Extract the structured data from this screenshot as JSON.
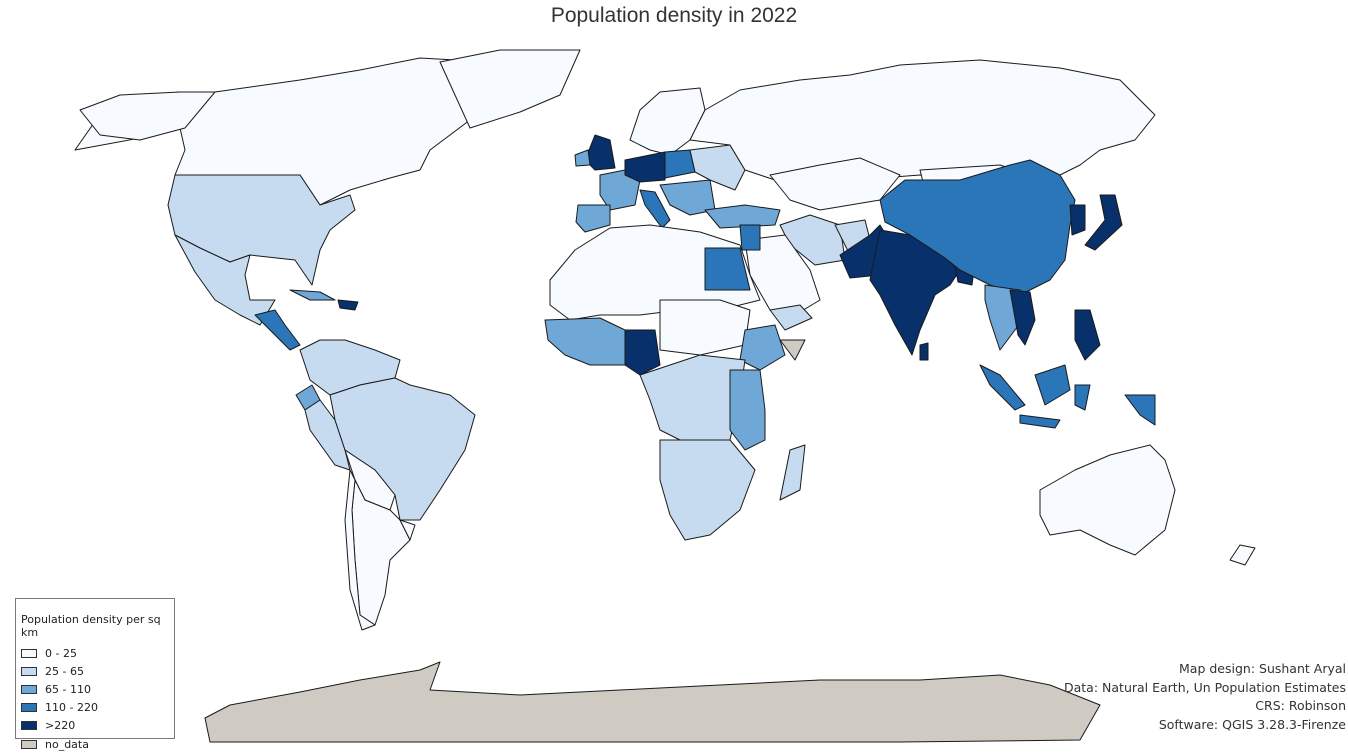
{
  "title": "Population density in 2022",
  "legend": {
    "title": "Population density per sq km",
    "items": [
      {
        "label": "0 - 25",
        "color": "#f7fbff"
      },
      {
        "label": "25 - 65",
        "color": "#c6dbef"
      },
      {
        "label": "65 - 110",
        "color": "#6fa8d6"
      },
      {
        "label": "110 - 220",
        "color": "#2b75b9"
      },
      {
        "label": ">220",
        "color": "#08306b"
      },
      {
        "label": "no_data",
        "color": "#cfcbc3"
      }
    ]
  },
  "credits": {
    "design": "Map design: Sushant Aryal",
    "data": "Data: Natural Earth, Un Population Estimates",
    "crs": "CRS: Robinson",
    "software": "Software: QGIS 3.28.3-Firenze"
  },
  "colors": {
    "outline": "#1a1a1a",
    "background": "#ffffff"
  }
}
